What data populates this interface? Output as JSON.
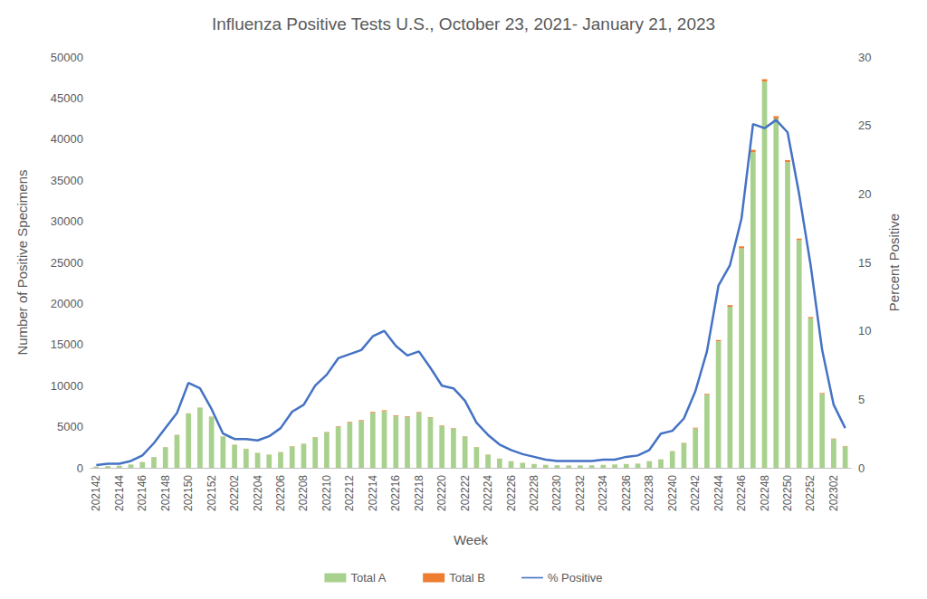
{
  "chart_data": {
    "type": "bar",
    "title": "Influenza Positive Tests U.S., October 23, 2021- January 21, 2023",
    "x_label": "Week",
    "y_label": "Number of Positive Specimens",
    "y2_label": "Percent Positive",
    "categories": [
      "202142",
      null,
      "202144",
      null,
      "202146",
      null,
      "202148",
      null,
      "202150",
      null,
      "202152",
      null,
      "202202",
      null,
      "202204",
      null,
      "202206",
      null,
      "202208",
      null,
      "202210",
      null,
      "202212",
      null,
      "202214",
      null,
      "202216",
      null,
      "202218",
      null,
      "202220",
      null,
      "202222",
      null,
      "202224",
      null,
      "202226",
      null,
      "202228",
      null,
      "202230",
      null,
      "202232",
      null,
      "202234",
      null,
      "202236",
      null,
      "202238",
      null,
      "202240",
      null,
      "202242",
      null,
      "202244",
      null,
      "202246",
      null,
      "202248",
      null,
      "202250",
      null,
      "202252",
      null,
      "202302",
      null
    ],
    "series": [
      {
        "name": "Total A",
        "type": "bar",
        "color": "#a9d18e",
        "values": [
          150,
          200,
          250,
          400,
          700,
          1300,
          2500,
          4000,
          6600,
          7300,
          6200,
          3800,
          2800,
          2300,
          1800,
          1600,
          1900,
          2600,
          2900,
          3700,
          4300,
          5000,
          5500,
          5700,
          6700,
          6900,
          6300,
          6200,
          6700,
          6100,
          5100,
          4800,
          3800,
          2500,
          1600,
          1100,
          800,
          600,
          450,
          350,
          300,
          280,
          280,
          300,
          350,
          400,
          450,
          500,
          800,
          1000,
          2000,
          3000,
          4800,
          8900,
          15400,
          19600,
          26700,
          38400,
          47000,
          42500,
          37200,
          27700,
          18200,
          9000,
          3500,
          2600
        ]
      },
      {
        "name": "Total B",
        "type": "bar",
        "color": "#ed7d31",
        "values": [
          5,
          5,
          5,
          5,
          10,
          10,
          20,
          20,
          30,
          30,
          30,
          20,
          20,
          20,
          20,
          20,
          20,
          30,
          30,
          40,
          50,
          60,
          80,
          100,
          100,
          100,
          90,
          80,
          80,
          70,
          60,
          50,
          40,
          30,
          20,
          20,
          10,
          10,
          10,
          10,
          10,
          10,
          10,
          10,
          10,
          10,
          10,
          10,
          10,
          20,
          30,
          40,
          80,
          100,
          150,
          200,
          250,
          300,
          300,
          300,
          250,
          200,
          150,
          100,
          60,
          50
        ]
      },
      {
        "name": "% Positive",
        "type": "line",
        "axis": "y2",
        "color": "#4472c4",
        "line_style": "solid",
        "marker": "none",
        "values": [
          0.2,
          0.3,
          0.3,
          0.5,
          0.9,
          1.8,
          2.9,
          4.0,
          6.2,
          5.8,
          4.3,
          2.5,
          2.1,
          2.1,
          2.0,
          2.3,
          2.9,
          4.1,
          4.6,
          6.0,
          6.8,
          8.0,
          8.3,
          8.6,
          9.6,
          10.0,
          8.9,
          8.2,
          8.5,
          7.3,
          6.0,
          5.8,
          4.9,
          3.3,
          2.4,
          1.7,
          1.3,
          1.0,
          0.8,
          0.6,
          0.5,
          0.5,
          0.5,
          0.5,
          0.6,
          0.6,
          0.8,
          0.9,
          1.3,
          2.5,
          2.7,
          3.6,
          5.6,
          8.5,
          13.3,
          14.8,
          18.2,
          25.1,
          24.8,
          25.4,
          24.5,
          20.0,
          14.8,
          8.6,
          4.6,
          2.9
        ]
      }
    ],
    "ylim": [
      0,
      50000
    ],
    "yticks": [
      0,
      5000,
      10000,
      15000,
      20000,
      25000,
      30000,
      35000,
      40000,
      45000,
      50000
    ],
    "y2lim": [
      0,
      30
    ],
    "y2ticks": [
      0,
      5,
      10,
      15,
      20,
      25,
      30
    ],
    "stacked": true,
    "grid": false,
    "legend": "bottom"
  }
}
